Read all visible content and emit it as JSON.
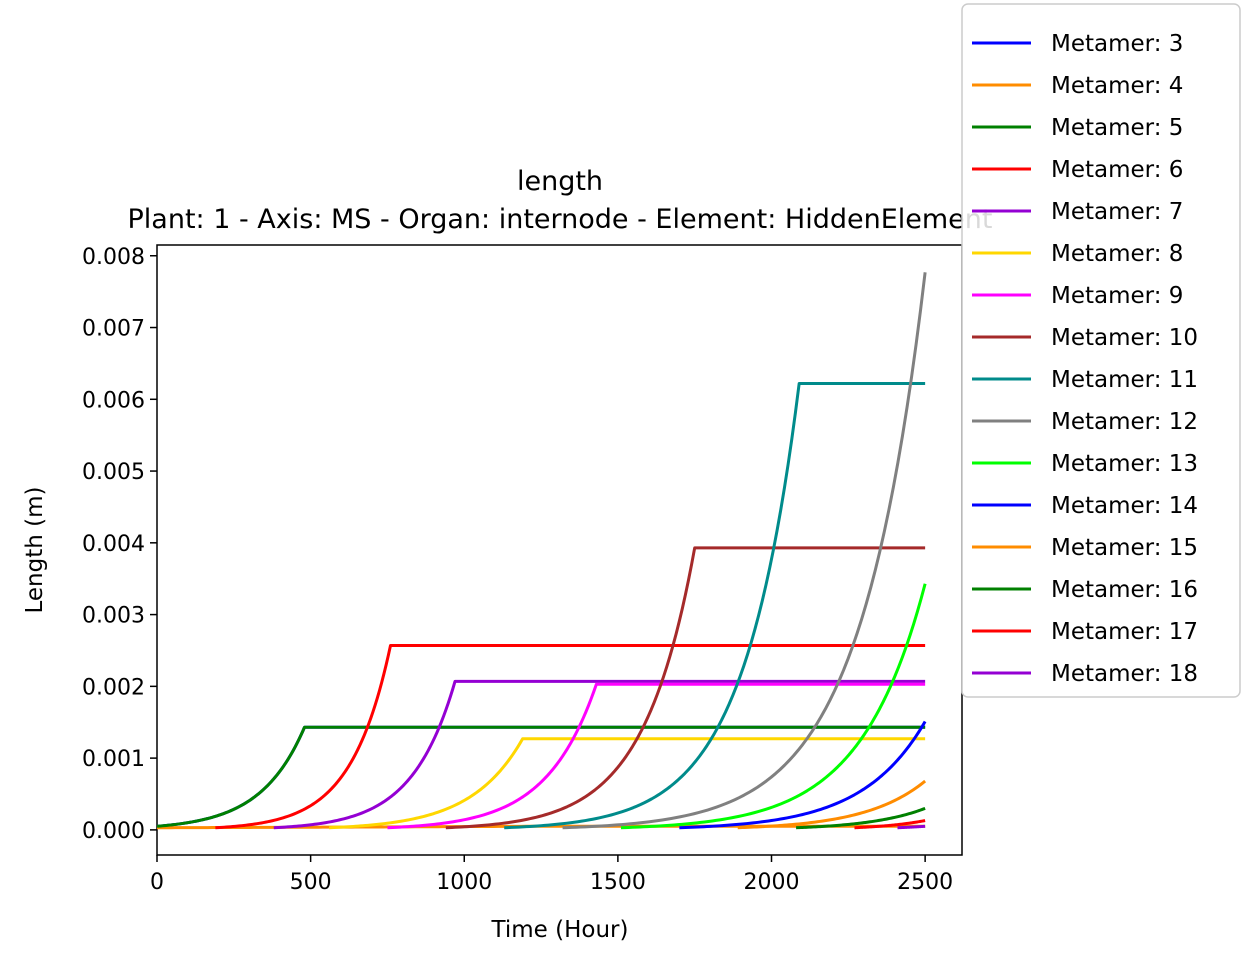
{
  "chart_data": {
    "type": "line",
    "title": "length",
    "subtitle": "Plant: 1 - Axis: MS - Organ: internode - Element: HiddenElement",
    "xlabel": "Time (Hour)",
    "ylabel": "Length (m)",
    "xlim": [
      0,
      2620
    ],
    "ylim": [
      -0.00035,
      0.00815
    ],
    "xticks": [
      "0",
      "500",
      "1000",
      "1500",
      "2000",
      "2500"
    ],
    "yticks": [
      "0.000",
      "0.001",
      "0.002",
      "0.003",
      "0.004",
      "0.005",
      "0.006",
      "0.007",
      "0.008"
    ],
    "grid": false,
    "legend_position": "outside-right",
    "series": [
      {
        "name": "Metamer: 3",
        "color": "#0000ff",
        "start": 0,
        "growth_end": 480,
        "final": 0.00143,
        "start_value": 5e-05
      },
      {
        "name": "Metamer: 4",
        "color": "#ff8c00",
        "start": 0,
        "growth_end": 1200,
        "final": 5e-05,
        "start_value": 3e-05
      },
      {
        "name": "Metamer: 5",
        "color": "#008000",
        "start": 0,
        "growth_end": 480,
        "final": 0.00143,
        "start_value": 5e-05
      },
      {
        "name": "Metamer: 6",
        "color": "#ff0000",
        "start": 190,
        "growth_end": 760,
        "final": 0.00257,
        "start_value": 3e-05
      },
      {
        "name": "Metamer: 7",
        "color": "#9400d3",
        "start": 380,
        "growth_end": 970,
        "final": 0.00207,
        "start_value": 3e-05
      },
      {
        "name": "Metamer: 8",
        "color": "#ffd700",
        "start": 560,
        "growth_end": 1190,
        "final": 0.00127,
        "start_value": 3e-05
      },
      {
        "name": "Metamer: 9",
        "color": "#ff00ff",
        "start": 750,
        "growth_end": 1430,
        "final": 0.00203,
        "start_value": 3e-05
      },
      {
        "name": "Metamer: 10",
        "color": "#a52a2a",
        "start": 940,
        "growth_end": 1750,
        "final": 0.00393,
        "start_value": 3e-05
      },
      {
        "name": "Metamer: 11",
        "color": "#008b8b",
        "start": 1130,
        "growth_end": 2090,
        "final": 0.00622,
        "start_value": 3e-05
      },
      {
        "name": "Metamer: 12",
        "color": "#808080",
        "start": 1320,
        "growth_end": 2500,
        "final": 0.00777,
        "start_value": 3e-05
      },
      {
        "name": "Metamer: 13",
        "color": "#00ff00",
        "start": 1510,
        "growth_end": 2500,
        "final": 0.00343,
        "start_value": 3e-05
      },
      {
        "name": "Metamer: 14",
        "color": "#0000ff",
        "start": 1700,
        "growth_end": 2500,
        "final": 0.00151,
        "start_value": 3e-05
      },
      {
        "name": "Metamer: 15",
        "color": "#ff8c00",
        "start": 1890,
        "growth_end": 2500,
        "final": 0.00068,
        "start_value": 3e-05
      },
      {
        "name": "Metamer: 16",
        "color": "#008000",
        "start": 2080,
        "growth_end": 2500,
        "final": 0.0003,
        "start_value": 3e-05
      },
      {
        "name": "Metamer: 17",
        "color": "#ff0000",
        "start": 2270,
        "growth_end": 2500,
        "final": 0.00013,
        "start_value": 3e-05
      },
      {
        "name": "Metamer: 18",
        "color": "#9400d3",
        "start": 2410,
        "growth_end": 2500,
        "final": 5e-05,
        "start_value": 3e-05
      }
    ]
  }
}
